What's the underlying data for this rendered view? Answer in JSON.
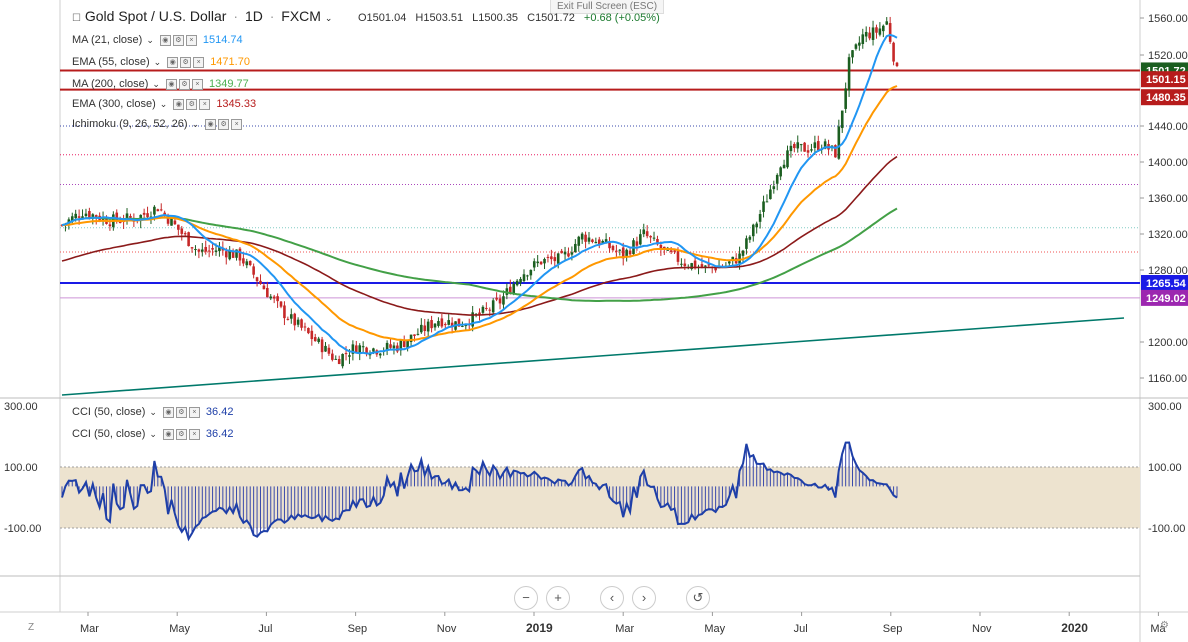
{
  "header": {
    "symbol": "Gold Spot / U.S. Dollar",
    "interval": "1D",
    "exchange": "FXCM",
    "ohlc": {
      "open": "O1501.04",
      "high": "H1503.51",
      "low": "L1500.35",
      "close": "C1501.72",
      "change": "+0.68 (+0.05%)"
    }
  },
  "exit_fullscreen": "Exit Full Screen (ESC)",
  "indicators": [
    {
      "label": "MA (21, close)",
      "value": "1514.74",
      "color": "#2196f3"
    },
    {
      "label": "EMA (55, close)",
      "value": "1471.70",
      "color": "#ff9800"
    },
    {
      "label": "MA (200, close)",
      "value": "1349.77",
      "color": "#4caf50"
    },
    {
      "label": "EMA (300, close)",
      "value": "1345.33",
      "color": "#b71c1c"
    },
    {
      "label": "Ichimoku (9, 26, 52, 26)",
      "value": "",
      "color": "#2962ff"
    }
  ],
  "cci_indicators": [
    {
      "label": "CCI (50, close)",
      "value": "36.42",
      "color": "#1e3fa8"
    },
    {
      "label": "CCI (50, close)",
      "value": "36.42",
      "color": "#1e3fa8"
    }
  ],
  "price_axis": [
    "1560.00",
    "1520.00",
    "1440.00",
    "1400.00",
    "1360.00",
    "1320.00",
    "1280.00",
    "1200.00",
    "1160.00"
  ],
  "price_labels": [
    {
      "text": "1501.72",
      "bg": "#1b5e20",
      "price": 1501.72
    },
    {
      "text": "1501.15",
      "bg": "#b71c1c",
      "price": 1492
    },
    {
      "text": "1480.35",
      "bg": "#b71c1c",
      "price": 1472
    },
    {
      "text": "1265.54",
      "bg": "#1a1ae6",
      "price": 1265.54
    },
    {
      "text": "1249.02",
      "bg": "#9c27b0",
      "price": 1249.02
    }
  ],
  "cci_axis": [
    "300.00",
    "100.00",
    "-100.00"
  ],
  "time_axis": [
    "Mar",
    "May",
    "Jul",
    "Sep",
    "Nov",
    "2019",
    "Mar",
    "May",
    "Jul",
    "Sep",
    "Nov",
    "2020",
    "Ma"
  ],
  "nav_buttons": {
    "zoom_out": "−",
    "zoom_in": "+",
    "scroll_left": "‹",
    "scroll_right": "›",
    "reset": "↺"
  },
  "corner_left": "Z",
  "corner_right": "⚙",
  "colors": {
    "up_candle": "#1b5e20",
    "down_candle": "#c62828",
    "cci_band": "#ede3cf",
    "cci_line": "#1e3fa8"
  }
}
